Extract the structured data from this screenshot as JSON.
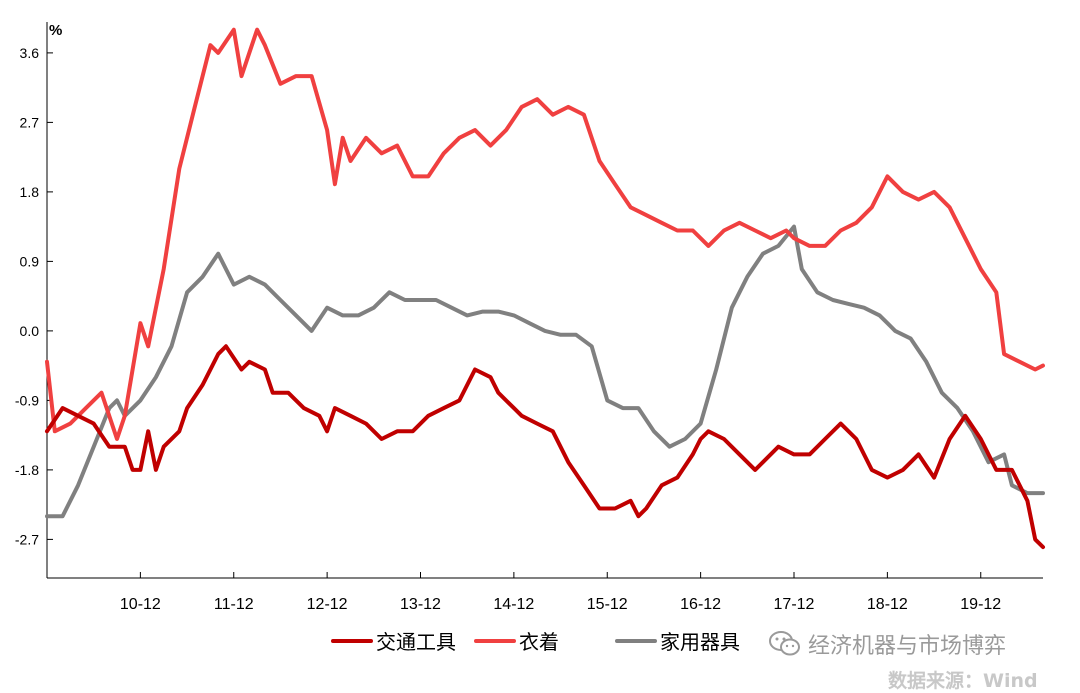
{
  "chart_data": {
    "type": "line",
    "unit_label": "%",
    "ylim": [
      -3.2,
      4.0
    ],
    "yticks": [
      "3.6",
      "2.7",
      "1.8",
      "0.9",
      "0.0",
      "-0.9",
      "-1.8",
      "-2.7"
    ],
    "ytick_values": [
      3.6,
      2.7,
      1.8,
      0.9,
      0.0,
      -0.9,
      -1.8,
      -2.7
    ],
    "x_start": "2009-12",
    "x_end": "2020-08",
    "x_tick_labels": [
      "10-12",
      "11-12",
      "12-12",
      "13-12",
      "14-12",
      "15-12",
      "16-12",
      "17-12",
      "18-12",
      "19-12"
    ],
    "x_tick_dates": [
      "2010-12",
      "2011-12",
      "2012-12",
      "2013-12",
      "2014-12",
      "2015-12",
      "2016-12",
      "2017-12",
      "2018-12",
      "2019-12"
    ],
    "grid": false,
    "legend_position": "bottom",
    "series": [
      {
        "name": "交通工具",
        "color": "#c00000",
        "points": [
          [
            "2009-12",
            -1.3
          ],
          [
            "2010-02",
            -1.0
          ],
          [
            "2010-04",
            -1.1
          ],
          [
            "2010-06",
            -1.2
          ],
          [
            "2010-08",
            -1.5
          ],
          [
            "2010-10",
            -1.5
          ],
          [
            "2010-11",
            -1.8
          ],
          [
            "2010-12",
            -1.8
          ],
          [
            "2011-01",
            -1.3
          ],
          [
            "2011-02",
            -1.8
          ],
          [
            "2011-03",
            -1.5
          ],
          [
            "2011-05",
            -1.3
          ],
          [
            "2011-06",
            -1.0
          ],
          [
            "2011-08",
            -0.7
          ],
          [
            "2011-10",
            -0.3
          ],
          [
            "2011-11",
            -0.2
          ],
          [
            "2012-01",
            -0.5
          ],
          [
            "2012-02",
            -0.4
          ],
          [
            "2012-04",
            -0.5
          ],
          [
            "2012-05",
            -0.8
          ],
          [
            "2012-07",
            -0.8
          ],
          [
            "2012-09",
            -1.0
          ],
          [
            "2012-11",
            -1.1
          ],
          [
            "2012-12",
            -1.3
          ],
          [
            "2013-01",
            -1.0
          ],
          [
            "2013-03",
            -1.1
          ],
          [
            "2013-05",
            -1.2
          ],
          [
            "2013-07",
            -1.4
          ],
          [
            "2013-09",
            -1.3
          ],
          [
            "2013-11",
            -1.3
          ],
          [
            "2014-01",
            -1.1
          ],
          [
            "2014-03",
            -1.0
          ],
          [
            "2014-05",
            -0.9
          ],
          [
            "2014-07",
            -0.5
          ],
          [
            "2014-09",
            -0.6
          ],
          [
            "2014-10",
            -0.8
          ],
          [
            "2014-12",
            -1.0
          ],
          [
            "2015-01",
            -1.1
          ],
          [
            "2015-03",
            -1.2
          ],
          [
            "2015-05",
            -1.3
          ],
          [
            "2015-07",
            -1.7
          ],
          [
            "2015-09",
            -2.0
          ],
          [
            "2015-11",
            -2.3
          ],
          [
            "2016-01",
            -2.3
          ],
          [
            "2016-03",
            -2.2
          ],
          [
            "2016-04",
            -2.4
          ],
          [
            "2016-05",
            -2.3
          ],
          [
            "2016-07",
            -2.0
          ],
          [
            "2016-09",
            -1.9
          ],
          [
            "2016-11",
            -1.6
          ],
          [
            "2016-12",
            -1.4
          ],
          [
            "2017-01",
            -1.3
          ],
          [
            "2017-03",
            -1.4
          ],
          [
            "2017-05",
            -1.6
          ],
          [
            "2017-07",
            -1.8
          ],
          [
            "2017-08",
            -1.7
          ],
          [
            "2017-10",
            -1.5
          ],
          [
            "2017-12",
            -1.6
          ],
          [
            "2018-02",
            -1.6
          ],
          [
            "2018-04",
            -1.4
          ],
          [
            "2018-06",
            -1.2
          ],
          [
            "2018-08",
            -1.4
          ],
          [
            "2018-10",
            -1.8
          ],
          [
            "2018-12",
            -1.9
          ],
          [
            "2019-02",
            -1.8
          ],
          [
            "2019-04",
            -1.6
          ],
          [
            "2019-06",
            -1.9
          ],
          [
            "2019-08",
            -1.4
          ],
          [
            "2019-10",
            -1.1
          ],
          [
            "2019-12",
            -1.4
          ],
          [
            "2020-02",
            -1.8
          ],
          [
            "2020-04",
            -1.8
          ],
          [
            "2020-06",
            -2.2
          ],
          [
            "2020-07",
            -2.7
          ],
          [
            "2020-08",
            -2.8
          ]
        ]
      },
      {
        "name": "衣着",
        "color": "#f04040",
        "points": [
          [
            "2009-12",
            -0.4
          ],
          [
            "2010-01",
            -1.3
          ],
          [
            "2010-03",
            -1.2
          ],
          [
            "2010-05",
            -1.0
          ],
          [
            "2010-07",
            -0.8
          ],
          [
            "2010-09",
            -1.4
          ],
          [
            "2010-10",
            -1.1
          ],
          [
            "2010-12",
            0.1
          ],
          [
            "2011-01",
            -0.2
          ],
          [
            "2011-03",
            0.8
          ],
          [
            "2011-05",
            2.1
          ],
          [
            "2011-07",
            2.9
          ],
          [
            "2011-09",
            3.7
          ],
          [
            "2011-10",
            3.6
          ],
          [
            "2011-12",
            3.9
          ],
          [
            "2012-01",
            3.3
          ],
          [
            "2012-03",
            3.9
          ],
          [
            "2012-04",
            3.7
          ],
          [
            "2012-06",
            3.2
          ],
          [
            "2012-08",
            3.3
          ],
          [
            "2012-10",
            3.3
          ],
          [
            "2012-12",
            2.6
          ],
          [
            "2013-01",
            1.9
          ],
          [
            "2013-02",
            2.5
          ],
          [
            "2013-03",
            2.2
          ],
          [
            "2013-05",
            2.5
          ],
          [
            "2013-07",
            2.3
          ],
          [
            "2013-09",
            2.4
          ],
          [
            "2013-11",
            2.0
          ],
          [
            "2014-01",
            2.0
          ],
          [
            "2014-03",
            2.3
          ],
          [
            "2014-05",
            2.5
          ],
          [
            "2014-07",
            2.6
          ],
          [
            "2014-09",
            2.4
          ],
          [
            "2014-11",
            2.6
          ],
          [
            "2015-01",
            2.9
          ],
          [
            "2015-03",
            3.0
          ],
          [
            "2015-05",
            2.8
          ],
          [
            "2015-07",
            2.9
          ],
          [
            "2015-09",
            2.8
          ],
          [
            "2015-11",
            2.2
          ],
          [
            "2016-01",
            1.9
          ],
          [
            "2016-03",
            1.6
          ],
          [
            "2016-05",
            1.5
          ],
          [
            "2016-07",
            1.4
          ],
          [
            "2016-09",
            1.3
          ],
          [
            "2016-11",
            1.3
          ],
          [
            "2017-01",
            1.1
          ],
          [
            "2017-03",
            1.3
          ],
          [
            "2017-05",
            1.4
          ],
          [
            "2017-07",
            1.3
          ],
          [
            "2017-09",
            1.2
          ],
          [
            "2017-11",
            1.3
          ],
          [
            "2017-12",
            1.2
          ],
          [
            "2018-02",
            1.1
          ],
          [
            "2018-04",
            1.1
          ],
          [
            "2018-06",
            1.3
          ],
          [
            "2018-08",
            1.4
          ],
          [
            "2018-10",
            1.6
          ],
          [
            "2018-12",
            2.0
          ],
          [
            "2019-02",
            1.8
          ],
          [
            "2019-04",
            1.7
          ],
          [
            "2019-06",
            1.8
          ],
          [
            "2019-08",
            1.6
          ],
          [
            "2019-10",
            1.2
          ],
          [
            "2019-12",
            0.8
          ],
          [
            "2020-02",
            0.5
          ],
          [
            "2020-03",
            -0.3
          ],
          [
            "2020-05",
            -0.4
          ],
          [
            "2020-07",
            -0.5
          ],
          [
            "2020-08",
            -0.45
          ]
        ]
      },
      {
        "name": "家用器具",
        "color": "#808080",
        "points": [
          [
            "2009-12",
            -2.4
          ],
          [
            "2010-02",
            -2.4
          ],
          [
            "2010-04",
            -2.0
          ],
          [
            "2010-06",
            -1.5
          ],
          [
            "2010-08",
            -1.0
          ],
          [
            "2010-09",
            -0.9
          ],
          [
            "2010-10",
            -1.1
          ],
          [
            "2010-12",
            -0.9
          ],
          [
            "2011-02",
            -0.6
          ],
          [
            "2011-04",
            -0.2
          ],
          [
            "2011-06",
            0.5
          ],
          [
            "2011-08",
            0.7
          ],
          [
            "2011-10",
            1.0
          ],
          [
            "2011-12",
            0.6
          ],
          [
            "2012-02",
            0.7
          ],
          [
            "2012-04",
            0.6
          ],
          [
            "2012-06",
            0.4
          ],
          [
            "2012-08",
            0.2
          ],
          [
            "2012-10",
            0.0
          ],
          [
            "2012-12",
            0.3
          ],
          [
            "2013-02",
            0.2
          ],
          [
            "2013-04",
            0.2
          ],
          [
            "2013-06",
            0.3
          ],
          [
            "2013-08",
            0.5
          ],
          [
            "2013-10",
            0.4
          ],
          [
            "2013-12",
            0.4
          ],
          [
            "2014-02",
            0.4
          ],
          [
            "2014-04",
            0.3
          ],
          [
            "2014-06",
            0.2
          ],
          [
            "2014-08",
            0.25
          ],
          [
            "2014-10",
            0.25
          ],
          [
            "2014-12",
            0.2
          ],
          [
            "2015-02",
            0.1
          ],
          [
            "2015-04",
            0.0
          ],
          [
            "2015-06",
            -0.05
          ],
          [
            "2015-08",
            -0.05
          ],
          [
            "2015-10",
            -0.2
          ],
          [
            "2015-12",
            -0.9
          ],
          [
            "2016-02",
            -1.0
          ],
          [
            "2016-04",
            -1.0
          ],
          [
            "2016-06",
            -1.3
          ],
          [
            "2016-08",
            -1.5
          ],
          [
            "2016-10",
            -1.4
          ],
          [
            "2016-12",
            -1.2
          ],
          [
            "2017-02",
            -0.5
          ],
          [
            "2017-04",
            0.3
          ],
          [
            "2017-06",
            0.7
          ],
          [
            "2017-08",
            1.0
          ],
          [
            "2017-10",
            1.1
          ],
          [
            "2017-12",
            1.35
          ],
          [
            "2018-01",
            0.8
          ],
          [
            "2018-03",
            0.5
          ],
          [
            "2018-05",
            0.4
          ],
          [
            "2018-07",
            0.35
          ],
          [
            "2018-09",
            0.3
          ],
          [
            "2018-11",
            0.2
          ],
          [
            "2019-01",
            0.0
          ],
          [
            "2019-03",
            -0.1
          ],
          [
            "2019-05",
            -0.4
          ],
          [
            "2019-07",
            -0.8
          ],
          [
            "2019-09",
            -1.0
          ],
          [
            "2019-11",
            -1.3
          ],
          [
            "2020-01",
            -1.7
          ],
          [
            "2020-03",
            -1.6
          ],
          [
            "2020-04",
            -2.0
          ],
          [
            "2020-06",
            -2.1
          ],
          [
            "2020-08",
            -2.1
          ]
        ]
      }
    ]
  },
  "watermark": {
    "icon": "wechat-icon",
    "text": "经济机器与市场博弈"
  },
  "source_text": "数据来源：Wind"
}
